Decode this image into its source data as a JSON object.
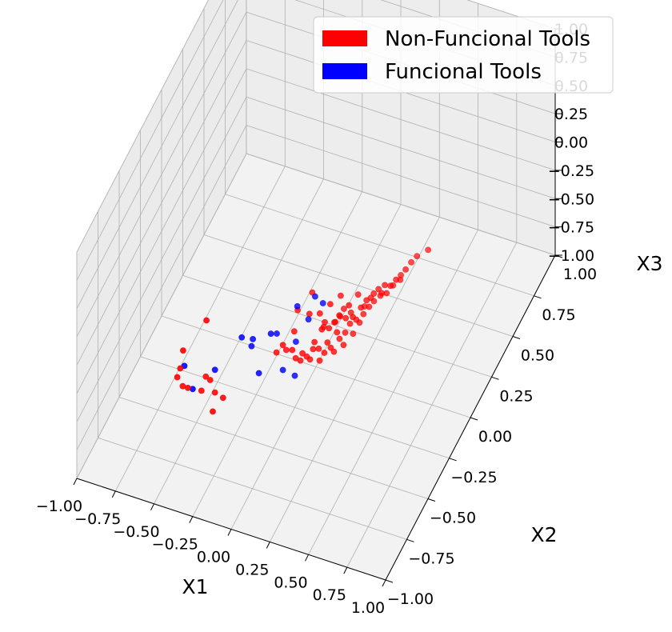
{
  "chart_data": {
    "type": "scatter",
    "projection": "3d",
    "xlabel": "X1",
    "ylabel": "X2",
    "zlabel": "X3",
    "xlim": [
      -1.0,
      1.0
    ],
    "ylim": [
      -1.0,
      1.0
    ],
    "zlim": [
      -1.0,
      1.0
    ],
    "x_ticks": [
      "−1.00",
      "−0.75",
      "−0.50",
      "−0.25",
      "0.00",
      "0.25",
      "0.50",
      "0.75",
      "1.00"
    ],
    "y_ticks": [
      "−1.00",
      "−0.75",
      "−0.50",
      "−0.25",
      "0.00",
      "0.25",
      "0.50",
      "0.75",
      "1.00"
    ],
    "z_ticks": [
      "−1.00",
      "−0.75",
      "−0.50",
      "−0.25",
      "0.00",
      "0.25",
      "0.50",
      "0.75",
      "1.00"
    ],
    "grid": true,
    "legend_position": "top-right",
    "series": [
      {
        "name": "Non-Funcional Tools",
        "color": "#ff0000",
        "points": [
          [
            -0.38,
            -0.6,
            0.1
          ],
          [
            -0.52,
            -0.62,
            -0.2
          ],
          [
            -0.55,
            -0.6,
            -0.4
          ],
          [
            -0.58,
            -0.58,
            -0.52
          ],
          [
            -0.55,
            -0.57,
            -0.6
          ],
          [
            -0.5,
            -0.6,
            -0.55
          ],
          [
            -0.44,
            -0.55,
            -0.62
          ],
          [
            -0.4,
            -0.52,
            -0.55
          ],
          [
            -0.45,
            -0.48,
            -0.6
          ],
          [
            -0.38,
            -0.5,
            -0.68
          ],
          [
            -0.35,
            -0.58,
            -0.72
          ],
          [
            -0.3,
            -0.55,
            -0.62
          ],
          [
            -0.05,
            -0.3,
            -0.4
          ],
          [
            0.0,
            -0.28,
            -0.45
          ],
          [
            0.05,
            -0.25,
            -0.5
          ],
          [
            -0.02,
            -0.22,
            -0.38
          ],
          [
            0.1,
            -0.2,
            -0.45
          ],
          [
            0.12,
            -0.15,
            -0.4
          ],
          [
            0.15,
            -0.12,
            -0.42
          ],
          [
            0.18,
            -0.1,
            -0.38
          ],
          [
            0.2,
            -0.08,
            -0.35
          ],
          [
            0.22,
            -0.05,
            -0.4
          ],
          [
            0.08,
            -0.18,
            -0.55
          ],
          [
            0.05,
            -0.2,
            -0.6
          ],
          [
            0.02,
            -0.22,
            -0.62
          ],
          [
            0.1,
            -0.15,
            -0.58
          ],
          [
            0.14,
            -0.12,
            -0.55
          ],
          [
            0.18,
            -0.08,
            -0.5
          ],
          [
            0.25,
            -0.02,
            -0.42
          ],
          [
            0.28,
            0.02,
            -0.38
          ],
          [
            0.3,
            0.05,
            -0.35
          ],
          [
            0.33,
            0.08,
            -0.32
          ],
          [
            0.35,
            0.1,
            -0.3
          ],
          [
            0.38,
            0.12,
            -0.28
          ],
          [
            0.4,
            0.15,
            -0.32
          ],
          [
            0.42,
            0.18,
            -0.3
          ],
          [
            0.15,
            -0.1,
            -0.62
          ],
          [
            0.12,
            -0.12,
            -0.65
          ],
          [
            0.18,
            -0.05,
            -0.6
          ],
          [
            0.2,
            -0.02,
            -0.58
          ],
          [
            0.22,
            0.0,
            -0.52
          ],
          [
            0.25,
            0.02,
            -0.5
          ],
          [
            0.28,
            0.05,
            -0.48
          ],
          [
            0.3,
            0.08,
            -0.45
          ],
          [
            0.32,
            0.1,
            -0.42
          ],
          [
            0.26,
            0.04,
            -0.55
          ],
          [
            0.24,
            0.0,
            -0.6
          ],
          [
            0.2,
            -0.04,
            -0.66
          ],
          [
            0.16,
            -0.08,
            -0.68
          ],
          [
            0.1,
            -0.14,
            -0.7
          ],
          [
            0.06,
            -0.18,
            -0.65
          ],
          [
            0.0,
            -0.24,
            -0.58
          ],
          [
            -0.05,
            -0.26,
            -0.5
          ],
          [
            0.36,
            0.12,
            -0.36
          ],
          [
            0.38,
            0.14,
            -0.38
          ],
          [
            0.44,
            0.2,
            -0.28
          ],
          [
            0.46,
            0.22,
            -0.25
          ],
          [
            0.48,
            0.25,
            -0.22
          ],
          [
            0.5,
            0.28,
            -0.2
          ],
          [
            0.55,
            0.32,
            -0.18
          ],
          [
            0.08,
            -0.1,
            -0.35
          ],
          [
            0.04,
            -0.15,
            -0.3
          ],
          [
            -0.02,
            -0.18,
            -0.25
          ],
          [
            0.02,
            -0.08,
            -0.22
          ],
          [
            0.12,
            -0.05,
            -0.32
          ],
          [
            0.16,
            0.0,
            -0.3
          ],
          [
            0.24,
            0.06,
            -0.34
          ],
          [
            0.3,
            0.1,
            -0.4
          ],
          [
            0.34,
            0.14,
            -0.42
          ],
          [
            0.27,
            0.08,
            -0.46
          ],
          [
            0.21,
            0.03,
            -0.47
          ],
          [
            0.13,
            -0.02,
            -0.52
          ],
          [
            0.09,
            -0.06,
            -0.48
          ],
          [
            0.17,
            0.02,
            -0.44
          ],
          [
            0.4,
            0.18,
            -0.36
          ],
          [
            0.43,
            0.21,
            -0.34
          ],
          [
            0.19,
            -0.07,
            -0.36
          ],
          [
            0.23,
            -0.03,
            -0.31
          ],
          [
            0.11,
            -0.11,
            -0.44
          ],
          [
            -0.08,
            -0.32,
            -0.45
          ]
        ]
      },
      {
        "name": "Funcional Tools",
        "color": "#0000ff",
        "points": [
          [
            -0.55,
            -0.55,
            -0.45
          ],
          [
            -0.48,
            -0.58,
            -0.58
          ],
          [
            -0.38,
            -0.5,
            -0.48
          ],
          [
            -0.25,
            -0.42,
            -0.25
          ],
          [
            -0.1,
            -0.35,
            -0.25
          ],
          [
            0.0,
            -0.22,
            -0.15
          ],
          [
            0.05,
            -0.18,
            -0.3
          ],
          [
            -0.05,
            -0.3,
            -0.62
          ],
          [
            0.0,
            -0.25,
            -0.72
          ],
          [
            -0.15,
            -0.4,
            -0.55
          ],
          [
            -0.2,
            -0.38,
            -0.3
          ],
          [
            -0.22,
            -0.36,
            -0.4
          ],
          [
            0.06,
            -0.12,
            -0.18
          ],
          [
            0.1,
            -0.1,
            -0.25
          ],
          [
            -0.02,
            -0.2,
            -0.5
          ],
          [
            -0.1,
            -0.28,
            -0.35
          ]
        ]
      }
    ]
  }
}
